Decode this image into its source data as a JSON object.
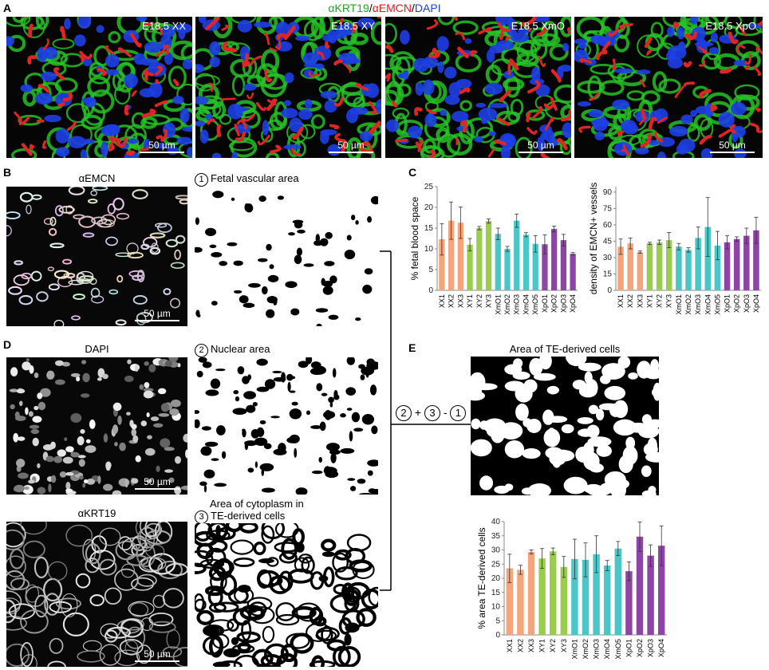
{
  "figure": {
    "header_parts": [
      "αKRT19",
      "/",
      "αEMCN",
      "/",
      "DAPI"
    ],
    "header_colors": [
      "#1fa31f",
      "#000000",
      "#e31a1a",
      "#000000",
      "#1a3fe3"
    ],
    "panels": {
      "A": "A",
      "B": "B",
      "C": "C",
      "D": "D",
      "E": "E"
    },
    "conditions": [
      "E18.5 XX",
      "E18.5 XY",
      "E18.5 XmO",
      "E18.5 XpO"
    ],
    "scale_label": "50 µm",
    "b_title": "αEMCN",
    "b_step": "1",
    "b_step_label": "Fetal vascular area",
    "d_title": "DAPI",
    "d_step": "2",
    "d_step_label": "Nuclear area",
    "k_title": "αKRT19",
    "k_step": "3",
    "k_step_label_1": "Area of cytoplasm in",
    "k_step_label_2": "TE-derived cells",
    "formula": {
      "a": "2",
      "plus": "+",
      "b": "3",
      "minus": "-",
      "c": "1"
    },
    "e_title": "Area of TE-derived cells"
  },
  "colors": {
    "XX": "#f4a57b",
    "XY": "#9acd4e",
    "XmO": "#4bc6c6",
    "XpO": "#8e44a4"
  },
  "chart_data": [
    {
      "type": "bar",
      "categories": [
        "XX1",
        "XX2",
        "XX3",
        "XY1",
        "XY2",
        "XY3",
        "XmO1",
        "XmO2",
        "XmO3",
        "XmO4",
        "XmO5",
        "XpO1",
        "XpO2",
        "XpO3",
        "XpO4"
      ],
      "groups": [
        "XX",
        "XX",
        "XX",
        "XY",
        "XY",
        "XY",
        "XmO",
        "XmO",
        "XmO",
        "XmO",
        "XmO",
        "XpO",
        "XpO",
        "XpO",
        "XpO"
      ],
      "values": [
        12.3,
        16.8,
        16.3,
        11.0,
        15.0,
        16.7,
        13.6,
        10.0,
        16.8,
        13.4,
        11.2,
        11.1,
        14.8,
        12.1,
        8.8
      ],
      "errors": [
        3.8,
        4.5,
        3.8,
        1.5,
        0.4,
        0.5,
        1.4,
        0.6,
        1.6,
        0.5,
        2.0,
        2.3,
        0.7,
        1.4,
        0.3
      ],
      "ylabel": "% fetal blood space",
      "ylim": [
        0,
        25
      ],
      "yticks": [
        0,
        5,
        10,
        15,
        20,
        25
      ]
    },
    {
      "type": "bar",
      "categories": [
        "XX1",
        "XX2",
        "XX3",
        "XY1",
        "XY2",
        "XY3",
        "XmO1",
        "XmO2",
        "XmO3",
        "XmO4",
        "XmO5",
        "XpO1",
        "XpO2",
        "XpO3",
        "XpO4"
      ],
      "groups": [
        "XX",
        "XX",
        "XX",
        "XY",
        "XY",
        "XY",
        "XmO",
        "XmO",
        "XmO",
        "XmO",
        "XmO",
        "XpO",
        "XpO",
        "XpO",
        "XpO"
      ],
      "values": [
        40,
        43,
        35,
        43,
        44,
        46,
        40,
        37,
        48,
        58,
        41,
        44,
        47,
        50,
        55
      ],
      "errors": [
        7,
        5,
        1,
        1,
        2,
        7,
        3,
        2,
        10,
        27,
        13,
        6,
        2,
        7,
        12
      ],
      "ylabel": "density of EMCN+ vessels",
      "ylim": [
        0,
        95
      ],
      "yticks": [
        0,
        15,
        30,
        45,
        60,
        75,
        90
      ]
    },
    {
      "type": "bar",
      "categories": [
        "XX1",
        "XX2",
        "XX3",
        "XY1",
        "XY2",
        "XY3",
        "XmO1",
        "XmO2",
        "XmO3",
        "XmO4",
        "XmO5",
        "XpO1",
        "XpO2",
        "XpO3",
        "XpO4"
      ],
      "groups": [
        "XX",
        "XX",
        "XX",
        "XY",
        "XY",
        "XY",
        "XmO",
        "XmO",
        "XmO",
        "XmO",
        "XmO",
        "XpO",
        "XpO",
        "XpO",
        "XpO"
      ],
      "values": [
        23.5,
        23.0,
        29.3,
        27.0,
        29.5,
        24.0,
        26.8,
        26.5,
        28.5,
        24.5,
        30.5,
        22.5,
        34.7,
        28.0,
        31.5
      ],
      "errors": [
        5.0,
        1.6,
        0.7,
        3.5,
        1.2,
        3.7,
        7.0,
        6.0,
        6.5,
        1.8,
        2.5,
        3.3,
        5.2,
        3.8,
        7.0
      ],
      "ylabel": "% area TE-derived cells",
      "ylim": [
        0,
        40
      ],
      "yticks": [
        0,
        5,
        10,
        15,
        20,
        25,
        30,
        35,
        40
      ]
    }
  ]
}
